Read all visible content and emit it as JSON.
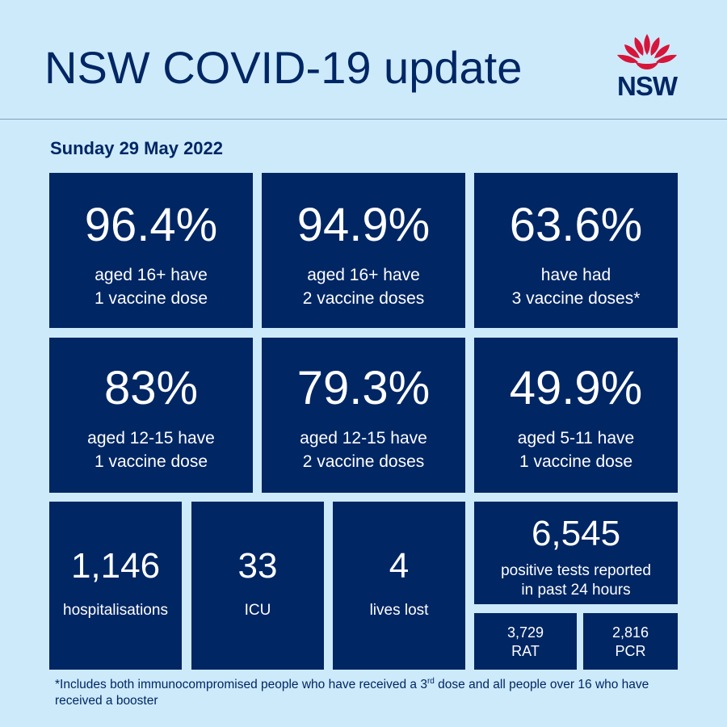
{
  "header": {
    "title": "NSW COVID-19 update",
    "logo_text": "NSW",
    "logo_icon": "waratah-flower-icon",
    "logo_color": "#d7153a"
  },
  "date": "Sunday 29 May 2022",
  "colors": {
    "background": "#cdeafb",
    "tile": "#002664",
    "text_dark": "#002664",
    "text_light": "#ffffff"
  },
  "vaccination": [
    {
      "value": "96.4%",
      "line1": "aged 16+ have",
      "line2": "1 vaccine dose"
    },
    {
      "value": "94.9%",
      "line1": "aged 16+ have",
      "line2": "2 vaccine doses"
    },
    {
      "value": "63.6%",
      "line1": "have had",
      "line2": "3 vaccine doses*"
    },
    {
      "value": "83%",
      "line1": "aged 12-15 have",
      "line2": "1 vaccine dose"
    },
    {
      "value": "79.3%",
      "line1": "aged 12-15 have",
      "line2": "2 vaccine doses"
    },
    {
      "value": "49.9%",
      "line1": "aged 5-11 have",
      "line2": "1 vaccine dose"
    }
  ],
  "stats": {
    "hospitalisations": {
      "value": "1,146",
      "label": "hospitalisations"
    },
    "icu": {
      "value": "33",
      "label": "ICU"
    },
    "deaths": {
      "value": "4",
      "label": "lives lost"
    },
    "positive": {
      "value": "6,545",
      "line1": "positive tests reported",
      "line2": "in past 24 hours"
    },
    "rat": {
      "value": "3,729",
      "label": "RAT"
    },
    "pcr": {
      "value": "2,816",
      "label": "PCR"
    }
  },
  "footnote": {
    "part1": "*Includes both immunocompromised people who have received a 3",
    "sup": "rd",
    "part2": " dose and all people over 16 who have received a booster"
  }
}
